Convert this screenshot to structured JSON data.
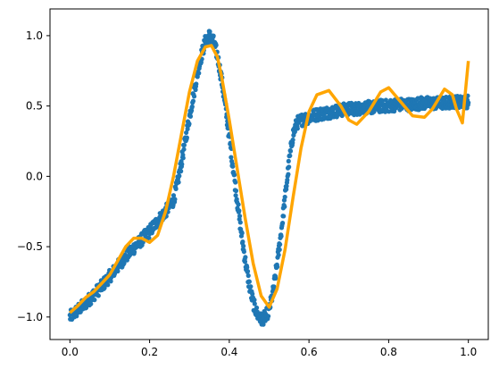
{
  "chart_data": {
    "type": "scatter",
    "title": "",
    "xlabel": "",
    "ylabel": "",
    "xlim": [
      -0.05,
      1.05
    ],
    "ylim": [
      -1.16,
      1.19
    ],
    "grid": false,
    "legend": "none",
    "x_ticks": [
      0.0,
      0.2,
      0.4,
      0.6,
      0.8,
      1.0
    ],
    "x_tick_labels": [
      "0.0",
      "0.2",
      "0.4",
      "0.6",
      "0.8",
      "1.0"
    ],
    "y_ticks": [
      -1.0,
      -0.5,
      0.0,
      0.5,
      1.0
    ],
    "y_tick_labels": [
      "−1.0",
      "−0.5",
      "0.0",
      "0.5",
      "1.0"
    ],
    "series": [
      {
        "kind": "scatter",
        "color": "#1f77b4",
        "x": [
          0.0,
          0.02,
          0.04,
          0.06,
          0.08,
          0.1,
          0.12,
          0.14,
          0.16,
          0.18,
          0.2,
          0.22,
          0.24,
          0.26,
          0.27,
          0.28,
          0.29,
          0.3,
          0.31,
          0.32,
          0.33,
          0.34,
          0.35,
          0.36,
          0.37,
          0.38,
          0.39,
          0.4,
          0.41,
          0.42,
          0.43,
          0.44,
          0.45,
          0.46,
          0.47,
          0.48,
          0.49,
          0.5,
          0.51,
          0.52,
          0.53,
          0.54,
          0.55,
          0.56,
          0.57,
          0.58,
          0.59,
          0.6,
          0.62,
          0.64,
          0.66,
          0.68,
          0.7,
          0.72,
          0.74,
          0.76,
          0.78,
          0.8,
          0.82,
          0.84,
          0.86,
          0.88,
          0.9,
          0.92,
          0.94,
          0.96,
          0.98,
          1.0
        ],
        "y": [
          -1.0,
          -0.95,
          -0.9,
          -0.84,
          -0.78,
          -0.71,
          -0.64,
          -0.57,
          -0.51,
          -0.45,
          -0.39,
          -0.32,
          -0.25,
          -0.17,
          -0.05,
          0.1,
          0.26,
          0.42,
          0.58,
          0.73,
          0.86,
          0.96,
          1.0,
          0.96,
          0.86,
          0.7,
          0.5,
          0.28,
          0.05,
          -0.18,
          -0.4,
          -0.6,
          -0.77,
          -0.9,
          -0.98,
          -1.02,
          -1.0,
          -0.95,
          -0.82,
          -0.62,
          -0.4,
          -0.15,
          0.1,
          0.3,
          0.38,
          0.4,
          0.41,
          0.42,
          0.44,
          0.45,
          0.46,
          0.47,
          0.48,
          0.48,
          0.49,
          0.49,
          0.5,
          0.5,
          0.51,
          0.51,
          0.51,
          0.52,
          0.52,
          0.52,
          0.52,
          0.53,
          0.53,
          0.53
        ]
      },
      {
        "kind": "line",
        "color": "#ffa500",
        "x": [
          0.0,
          0.02,
          0.04,
          0.06,
          0.08,
          0.1,
          0.12,
          0.14,
          0.16,
          0.18,
          0.2,
          0.22,
          0.24,
          0.26,
          0.28,
          0.3,
          0.32,
          0.34,
          0.355,
          0.37,
          0.38,
          0.4,
          0.42,
          0.44,
          0.46,
          0.48,
          0.5,
          0.52,
          0.54,
          0.56,
          0.58,
          0.6,
          0.62,
          0.65,
          0.68,
          0.7,
          0.72,
          0.75,
          0.78,
          0.8,
          0.83,
          0.86,
          0.89,
          0.91,
          0.94,
          0.96,
          0.97,
          0.985,
          1.0
        ],
        "y": [
          -0.97,
          -0.92,
          -0.86,
          -0.82,
          -0.76,
          -0.7,
          -0.6,
          -0.5,
          -0.44,
          -0.44,
          -0.47,
          -0.42,
          -0.25,
          0.0,
          0.3,
          0.6,
          0.82,
          0.92,
          0.93,
          0.85,
          0.72,
          0.4,
          0.05,
          -0.3,
          -0.62,
          -0.85,
          -0.93,
          -0.8,
          -0.52,
          -0.15,
          0.2,
          0.46,
          0.58,
          0.61,
          0.5,
          0.4,
          0.37,
          0.46,
          0.6,
          0.63,
          0.53,
          0.43,
          0.42,
          0.48,
          0.62,
          0.58,
          0.48,
          0.38,
          0.82
        ]
      }
    ]
  }
}
